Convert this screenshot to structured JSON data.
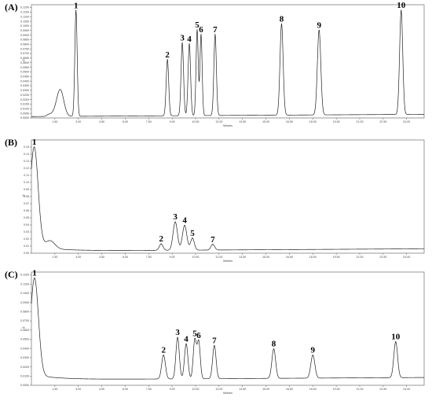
{
  "chart_data": [
    {
      "type": "line",
      "panel_label": "(A)",
      "ylabel": "%",
      "xlabel": "Minutes",
      "xlim": [
        0,
        25.12
      ],
      "ylim": [
        0,
        0.123
      ],
      "x_ticks": [
        "1.50",
        "3.00",
        "4.50",
        "6.00",
        "7.50",
        "9.00",
        "10.50",
        "12.00",
        "13.50",
        "15.00",
        "16.50",
        "18.00",
        "19.50",
        "21.00",
        "22.50",
        "24.00"
      ],
      "y_ticks": [
        "0.0000",
        "0.0050",
        "0.0100",
        "0.0150",
        "0.0200",
        "0.0250",
        "0.0300",
        "0.0350",
        "0.0400",
        "0.0450",
        "0.0500",
        "0.0550",
        "0.0600",
        "0.0650",
        "0.0700",
        "0.0750",
        "0.0800",
        "0.0850",
        "0.0900",
        "0.0950",
        "0.1000",
        "0.1050",
        "0.1100",
        "0.1150",
        "0.1200"
      ],
      "baseline": 0.0015,
      "peaks": [
        {
          "label": "",
          "x": 1.1,
          "height": 0.0015,
          "width": 0.12
        },
        {
          "label": "",
          "x": 1.5,
          "height": 0.0035,
          "width": 0.25
        },
        {
          "label": "",
          "x": 1.85,
          "height": 0.028,
          "width": 0.22
        },
        {
          "label": "1",
          "x": 2.85,
          "height": 0.115,
          "width": 0.075
        },
        {
          "label": "2",
          "x": 8.7,
          "height": 0.061,
          "width": 0.08
        },
        {
          "label": "3",
          "x": 9.65,
          "height": 0.079,
          "width": 0.08
        },
        {
          "label": "4",
          "x": 10.1,
          "height": 0.078,
          "width": 0.08
        },
        {
          "label": "5",
          "x": 10.6,
          "height": 0.093,
          "width": 0.07
        },
        {
          "label": "6",
          "x": 10.85,
          "height": 0.088,
          "width": 0.07
        },
        {
          "label": "7",
          "x": 11.75,
          "height": 0.088,
          "width": 0.08
        },
        {
          "label": "8",
          "x": 16.0,
          "height": 0.099,
          "width": 0.1
        },
        {
          "label": "9",
          "x": 18.4,
          "height": 0.092,
          "width": 0.11
        },
        {
          "label": "10",
          "x": 23.65,
          "height": 0.113,
          "width": 0.1
        }
      ]
    },
    {
      "type": "line",
      "panel_label": "(B)",
      "ylabel": "%",
      "xlabel": "Minutes",
      "xlim": [
        0,
        25.12
      ],
      "ylim": [
        0,
        0.16
      ],
      "x_ticks": [
        "1.50",
        "3.00",
        "4.50",
        "6.00",
        "7.50",
        "9.00",
        "10.50",
        "12.00",
        "13.50",
        "15.00",
        "16.50",
        "18.00",
        "19.50",
        "21.00",
        "22.50",
        "24.00"
      ],
      "y_ticks": [
        "0.00",
        "0.01",
        "0.02",
        "0.03",
        "0.04",
        "0.05",
        "0.06",
        "0.07",
        "0.08",
        "0.09",
        "0.10",
        "0.11",
        "0.12",
        "0.13",
        "0.14",
        "0.15"
      ],
      "baseline": 0.003,
      "peaks": [
        {
          "label": "1",
          "x": 0.18,
          "height": 0.14,
          "width": 0.25
        },
        {
          "label": "",
          "x": 1.2,
          "height": 0.011,
          "width": 0.3
        },
        {
          "label": "2",
          "x": 8.3,
          "height": 0.009,
          "width": 0.12
        },
        {
          "label": "3",
          "x": 9.2,
          "height": 0.04,
          "width": 0.14
        },
        {
          "label": "4",
          "x": 9.8,
          "height": 0.035,
          "width": 0.14
        },
        {
          "label": "5",
          "x": 10.3,
          "height": 0.017,
          "width": 0.12
        },
        {
          "label": "7",
          "x": 11.6,
          "height": 0.008,
          "width": 0.12
        }
      ]
    },
    {
      "type": "line",
      "panel_label": "(C)",
      "ylabel": "%",
      "xlabel": "Minutes",
      "xlim": [
        0,
        25.12
      ],
      "ylim": [
        0,
        0.123
      ],
      "x_ticks": [
        "1.50",
        "3.00",
        "4.50",
        "6.00",
        "7.50",
        "9.00",
        "10.50",
        "12.00",
        "13.50",
        "15.00",
        "16.50",
        "18.00",
        "19.50",
        "21.00",
        "22.50",
        "24.00"
      ],
      "y_ticks": [
        "0.0000",
        "0.0100",
        "0.0200",
        "0.0300",
        "0.0400",
        "0.0500",
        "0.0600",
        "0.0700",
        "0.0800",
        "0.0900",
        "0.1000",
        "0.1100",
        "0.1200"
      ],
      "baseline": 0.006,
      "peaks": [
        {
          "label": "1",
          "x": 0.2,
          "height": 0.105,
          "width": 0.25
        },
        {
          "label": "2",
          "x": 8.45,
          "height": 0.026,
          "width": 0.12
        },
        {
          "label": "3",
          "x": 9.35,
          "height": 0.045,
          "width": 0.11
        },
        {
          "label": "4",
          "x": 9.9,
          "height": 0.038,
          "width": 0.11
        },
        {
          "label": "5",
          "x": 10.45,
          "height": 0.042,
          "width": 0.1
        },
        {
          "label": "6",
          "x": 10.7,
          "height": 0.04,
          "width": 0.1
        },
        {
          "label": "7",
          "x": 11.7,
          "height": 0.036,
          "width": 0.11
        },
        {
          "label": "8",
          "x": 15.5,
          "height": 0.032,
          "width": 0.12
        },
        {
          "label": "9",
          "x": 18.0,
          "height": 0.025,
          "width": 0.13
        },
        {
          "label": "10",
          "x": 23.3,
          "height": 0.039,
          "width": 0.12
        }
      ]
    }
  ]
}
